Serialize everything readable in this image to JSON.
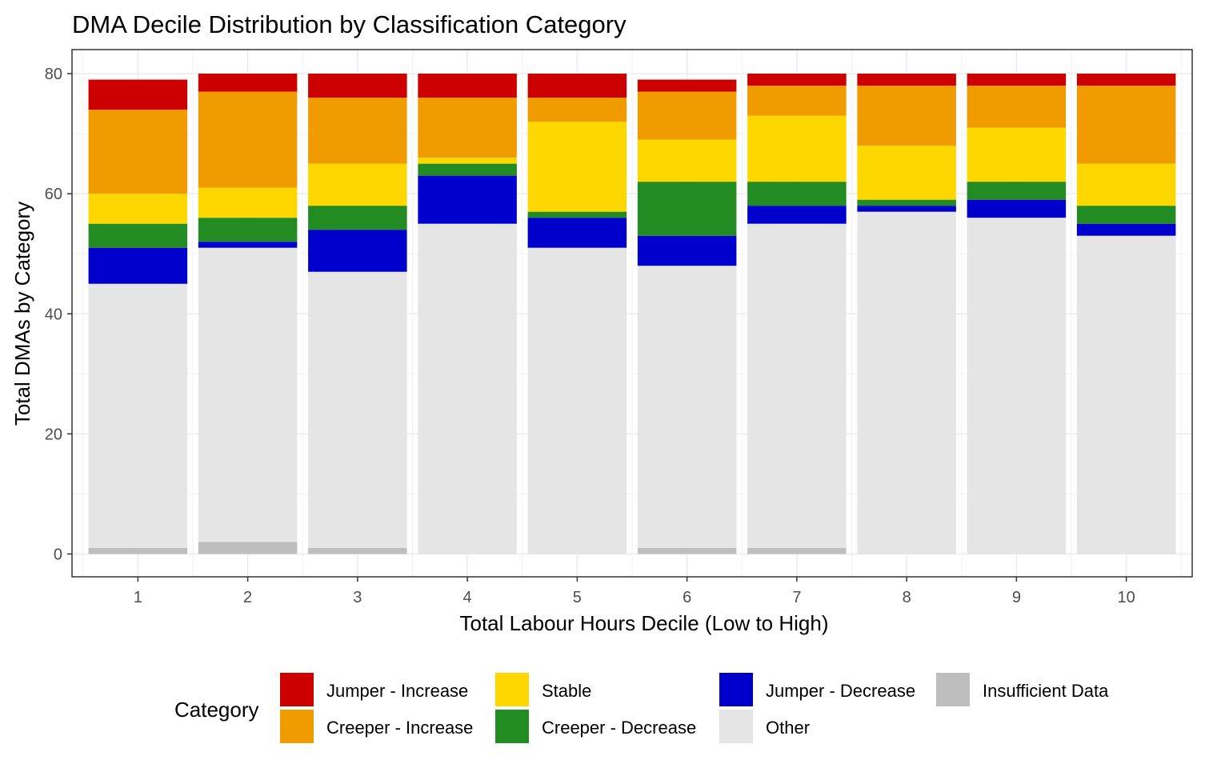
{
  "chart_data": {
    "type": "bar",
    "stacked": true,
    "title": "DMA Decile Distribution by Classification Category",
    "xlabel": "Total Labour Hours Decile (Low to High)",
    "ylabel": "Total DMAs by Category",
    "categories": [
      "1",
      "2",
      "3",
      "4",
      "5",
      "6",
      "7",
      "8",
      "9",
      "10"
    ],
    "yticks": [
      0,
      20,
      40,
      60,
      80
    ],
    "ylim": [
      -3.8,
      84
    ],
    "grid": true,
    "legend": {
      "title": "Category",
      "placement": "bottom",
      "columns": 4
    },
    "series": [
      {
        "name": "Insufficient Data",
        "color": "#bebebe",
        "values": [
          1,
          2,
          1,
          0,
          0,
          1,
          1,
          0,
          0,
          0
        ]
      },
      {
        "name": "Other",
        "color": "#e5e5e5",
        "values": [
          44,
          49,
          46,
          55,
          51,
          47,
          54,
          57,
          56,
          53
        ]
      },
      {
        "name": "Jumper - Decrease",
        "color": "#0000cd",
        "values": [
          6,
          1,
          7,
          8,
          5,
          5,
          3,
          1,
          3,
          2
        ]
      },
      {
        "name": "Creeper - Decrease",
        "color": "#228b22",
        "values": [
          4,
          4,
          4,
          2,
          1,
          9,
          4,
          1,
          3,
          3
        ]
      },
      {
        "name": "Stable",
        "color": "#ffd700",
        "values": [
          5,
          5,
          7,
          1,
          15,
          7,
          11,
          9,
          9,
          7
        ]
      },
      {
        "name": "Creeper - Increase",
        "color": "#f09b00",
        "values": [
          14,
          16,
          11,
          10,
          4,
          8,
          5,
          10,
          7,
          13
        ]
      },
      {
        "name": "Jumper - Increase",
        "color": "#cd0000",
        "values": [
          5,
          3,
          4,
          4,
          4,
          2,
          2,
          2,
          2,
          2
        ]
      }
    ],
    "legend_order": [
      "Jumper - Increase",
      "Creeper - Increase",
      "Stable",
      "Creeper - Decrease",
      "Jumper - Decrease",
      "Other",
      "Insufficient Data"
    ]
  }
}
